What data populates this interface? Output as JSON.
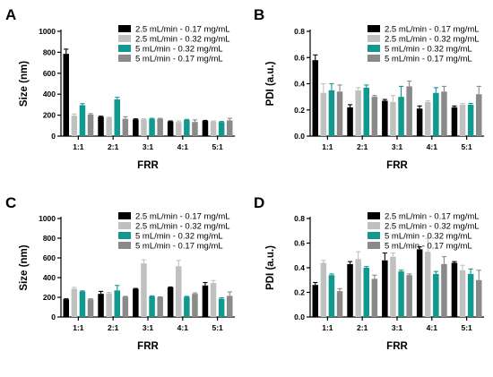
{
  "colors": {
    "series": [
      "#000000",
      "#c0c0c0",
      "#12998f",
      "#8a8a8a"
    ],
    "axis": "#000000"
  },
  "chart_data": [
    {
      "panel": "A",
      "type": "bar",
      "categories": [
        "1:1",
        "2:1",
        "3:1",
        "4:1",
        "5:1"
      ],
      "xlabel": "FRR",
      "ylabel": "Size (nm)",
      "ylim": [
        0,
        1000
      ],
      "yticks": [
        0,
        200,
        400,
        600,
        800,
        1000
      ],
      "legend": "top-right",
      "grid": false,
      "series": [
        {
          "name": "2.5 mL/min - 0.17 mg/mL",
          "values": [
            785,
            185,
            160,
            140,
            145
          ],
          "errors": [
            45,
            5,
            5,
            5,
            5
          ]
        },
        {
          "name": "2.5 mL/min - 0.32 mg/mL",
          "values": [
            195,
            175,
            160,
            135,
            140
          ],
          "errors": [
            15,
            5,
            5,
            10,
            5
          ]
        },
        {
          "name": "5 mL/min - 0.32 mg/mL",
          "values": [
            295,
            350,
            165,
            155,
            135
          ],
          "errors": [
            15,
            20,
            5,
            5,
            5
          ]
        },
        {
          "name": "5 mL/min - 0.17 mg/mL",
          "values": [
            205,
            165,
            165,
            135,
            150
          ],
          "errors": [
            10,
            20,
            5,
            20,
            20
          ]
        }
      ]
    },
    {
      "panel": "B",
      "type": "bar",
      "categories": [
        "1:1",
        "2:1",
        "3:1",
        "4:1",
        "5:1"
      ],
      "xlabel": "FRR",
      "ylabel": "PDI (a.u.)",
      "ylim": [
        0,
        0.8
      ],
      "yticks": [
        0.0,
        0.2,
        0.4,
        0.6,
        0.8
      ],
      "legend": "top-right",
      "grid": false,
      "series": [
        {
          "name": "2.5 mL/min - 0.17 mg/mL",
          "values": [
            0.58,
            0.22,
            0.27,
            0.21,
            0.22
          ],
          "errors": [
            0.04,
            0.02,
            0.01,
            0.02,
            0.01
          ]
        },
        {
          "name": "2.5 mL/min - 0.32 mg/mL",
          "values": [
            0.33,
            0.35,
            0.26,
            0.26,
            0.24
          ],
          "errors": [
            0.07,
            0.02,
            0.05,
            0.01,
            0.01
          ]
        },
        {
          "name": "5 mL/min - 0.32 mg/mL",
          "values": [
            0.35,
            0.37,
            0.3,
            0.33,
            0.24
          ],
          "errors": [
            0.05,
            0.02,
            0.08,
            0.04,
            0.01
          ]
        },
        {
          "name": "5 mL/min - 0.17 mg/mL",
          "values": [
            0.34,
            0.3,
            0.38,
            0.34,
            0.32
          ],
          "errors": [
            0.05,
            0.01,
            0.04,
            0.04,
            0.06
          ]
        }
      ]
    },
    {
      "panel": "C",
      "type": "bar",
      "categories": [
        "1:1",
        "2:1",
        "3:1",
        "4:1",
        "5:1"
      ],
      "xlabel": "FRR",
      "ylabel": "Size (nm)",
      "ylim": [
        0,
        1000
      ],
      "yticks": [
        0,
        200,
        400,
        600,
        800,
        1000
      ],
      "legend": "top-right",
      "grid": false,
      "series": [
        {
          "name": "2.5 mL/min - 0.17 mg/mL",
          "values": [
            180,
            235,
            285,
            300,
            320
          ],
          "errors": [
            5,
            25,
            5,
            5,
            30
          ]
        },
        {
          "name": "2.5 mL/min - 0.32 mg/mL",
          "values": [
            285,
            240,
            545,
            515,
            345
          ],
          "errors": [
            15,
            10,
            35,
            60,
            25
          ]
        },
        {
          "name": "5 mL/min - 0.32 mg/mL",
          "values": [
            260,
            270,
            210,
            205,
            185
          ],
          "errors": [
            5,
            50,
            5,
            5,
            10
          ]
        },
        {
          "name": "5 mL/min - 0.17 mg/mL",
          "values": [
            180,
            205,
            200,
            235,
            215
          ],
          "errors": [
            5,
            5,
            5,
            10,
            40
          ]
        }
      ]
    },
    {
      "panel": "D",
      "type": "bar",
      "categories": [
        "1:1",
        "2:1",
        "3:1",
        "4:1",
        "5:1"
      ],
      "xlabel": "FRR",
      "ylabel": "PDI (a.u.)",
      "ylim": [
        0,
        0.8
      ],
      "yticks": [
        0.0,
        0.2,
        0.4,
        0.6,
        0.8
      ],
      "legend": "top-right",
      "grid": false,
      "series": [
        {
          "name": "2.5 mL/min - 0.17 mg/mL",
          "values": [
            0.26,
            0.43,
            0.46,
            0.55,
            0.44
          ],
          "errors": [
            0.02,
            0.02,
            0.06,
            0.02,
            0.01
          ]
        },
        {
          "name": "2.5 mL/min - 0.32 mg/mL",
          "values": [
            0.44,
            0.47,
            0.49,
            0.53,
            0.38
          ],
          "errors": [
            0.02,
            0.06,
            0.03,
            0.11,
            0.04
          ]
        },
        {
          "name": "5 mL/min - 0.32 mg/mL",
          "values": [
            0.34,
            0.4,
            0.37,
            0.35,
            0.35
          ],
          "errors": [
            0.01,
            0.01,
            0.01,
            0.02,
            0.04
          ]
        },
        {
          "name": "5 mL/min - 0.17 mg/mL",
          "values": [
            0.21,
            0.31,
            0.34,
            0.43,
            0.3
          ],
          "errors": [
            0.02,
            0.03,
            0.01,
            0.06,
            0.08
          ]
        }
      ]
    }
  ]
}
